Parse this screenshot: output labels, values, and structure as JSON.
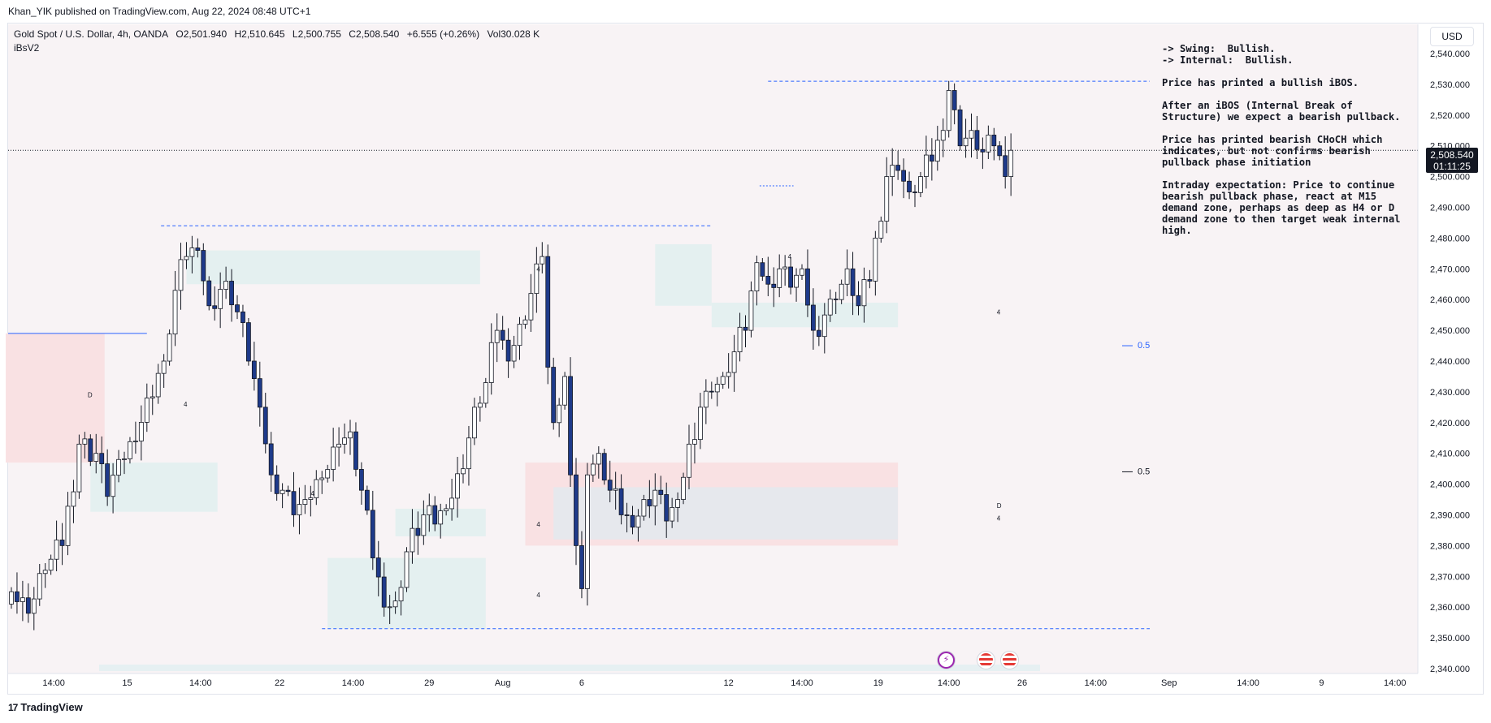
{
  "publisher_line": "Khan_YIK published on TradingView.com, Aug 22, 2024 08:48 UTC+1",
  "legend": {
    "symbol": "Gold Spot / U.S. Dollar, 4h, OANDA",
    "open": "O2,501.940",
    "high": "H2,510.645",
    "low": "L2,500.755",
    "close": "C2,508.540",
    "change": "+6.555 (+0.26%)",
    "volume": "Vol30.028 K",
    "indicator": "iBsV2"
  },
  "currency": "USD",
  "last_price": {
    "value": "2,508.540",
    "countdown": "01:11:25"
  },
  "notes": {
    "swing": "-> Swing:  Bullish.",
    "internal": "-> Internal:  Bullish.",
    "p1": "Price has printed a bullish iBOS.",
    "p2": "After an iBOS (Internal Break of Structure) we expect a bearish pullback.",
    "p3": "Price has printed bearish CHoCH which indicates, but not confirms bearish pullback phase initiation",
    "p4": "Intraday expectation: Price to continue bearish pullback phase, react at M15 demand zone, perhaps as deep as H4 or D demand zone to then target weak internal high."
  },
  "footer": {
    "brand": "TradingView"
  },
  "chart_data": {
    "type": "candlestick",
    "title": "Gold Spot / U.S. Dollar, 4h, OANDA",
    "ylim": [
      2333,
      2548
    ],
    "y_ticks": [
      2340,
      2350,
      2360,
      2370,
      2380,
      2390,
      2400,
      2410,
      2420,
      2430,
      2440,
      2450,
      2460,
      2470,
      2480,
      2490,
      2500,
      2510,
      2520,
      2530,
      2540
    ],
    "y_tick_labels": [
      "2,340.000",
      "2,350.000",
      "2,360.000",
      "2,370.000",
      "2,380.000",
      "2,390.000",
      "2,400.000",
      "2,410.000",
      "2,420.000",
      "2,430.000",
      "2,440.000",
      "2,450.000",
      "2,460.000",
      "2,470.000",
      "2,480.000",
      "2,490.000",
      "2,500.000",
      "2,510.000",
      "2,520.000",
      "2,530.000",
      "2,540.000"
    ],
    "x_labels": [
      {
        "label": "14:00",
        "bar": 7.5
      },
      {
        "label": "15",
        "bar": 20.5
      },
      {
        "label": "14:00",
        "bar": 33.5
      },
      {
        "label": "22",
        "bar": 47.5
      },
      {
        "label": "14:00",
        "bar": 60.5
      },
      {
        "label": "29",
        "bar": 74
      },
      {
        "label": "Aug",
        "bar": 87
      },
      {
        "label": "6",
        "bar": 101
      },
      {
        "label": "12",
        "bar": 127
      },
      {
        "label": "14:00",
        "bar": 140
      },
      {
        "label": "19",
        "bar": 153.5
      },
      {
        "label": "14:00",
        "bar": 166
      },
      {
        "label": "26",
        "bar": 179
      },
      {
        "label": "14:00",
        "bar": 192
      },
      {
        "label": "Sep",
        "bar": 205
      },
      {
        "label": "14:00",
        "bar": 219
      },
      {
        "label": "9",
        "bar": 232
      },
      {
        "label": "14:00",
        "bar": 245
      }
    ],
    "close_anchors": [
      [
        0,
        2365
      ],
      [
        3,
        2358
      ],
      [
        6,
        2372
      ],
      [
        9,
        2380
      ],
      [
        12,
        2413
      ],
      [
        15,
        2410
      ],
      [
        17,
        2396
      ],
      [
        19,
        2408
      ],
      [
        22,
        2414
      ],
      [
        24,
        2428
      ],
      [
        27,
        2440
      ],
      [
        29,
        2463
      ],
      [
        31,
        2474
      ],
      [
        33,
        2476
      ],
      [
        35,
        2458
      ],
      [
        38,
        2466
      ],
      [
        40,
        2456
      ],
      [
        42,
        2440
      ],
      [
        44,
        2425
      ],
      [
        46,
        2403
      ],
      [
        48,
        2398
      ],
      [
        50,
        2390
      ],
      [
        52,
        2395
      ],
      [
        55,
        2402
      ],
      [
        58,
        2413
      ],
      [
        60,
        2417
      ],
      [
        62,
        2398
      ],
      [
        64,
        2376
      ],
      [
        66,
        2360
      ],
      [
        68,
        2362
      ],
      [
        70,
        2378
      ],
      [
        73,
        2390
      ],
      [
        75,
        2387
      ],
      [
        77,
        2392
      ],
      [
        80,
        2405
      ],
      [
        82,
        2425
      ],
      [
        84,
        2433
      ],
      [
        86,
        2450
      ],
      [
        88,
        2440
      ],
      [
        90,
        2452
      ],
      [
        92,
        2462
      ],
      [
        94,
        2474
      ],
      [
        95,
        2438
      ],
      [
        96,
        2420
      ],
      [
        98,
        2435
      ],
      [
        100,
        2380
      ],
      [
        101,
        2366
      ],
      [
        102,
        2403
      ],
      [
        104,
        2410
      ],
      [
        106,
        2398
      ],
      [
        108,
        2390
      ],
      [
        110,
        2386
      ],
      [
        112,
        2395
      ],
      [
        114,
        2398
      ],
      [
        116,
        2388
      ],
      [
        118,
        2395
      ],
      [
        120,
        2413
      ],
      [
        122,
        2425
      ],
      [
        124,
        2430
      ],
      [
        126,
        2435
      ],
      [
        128,
        2443
      ],
      [
        130,
        2450
      ],
      [
        132,
        2472
      ],
      [
        134,
        2465
      ],
      [
        136,
        2470
      ],
      [
        138,
        2464
      ],
      [
        140,
        2470
      ],
      [
        142,
        2450
      ],
      [
        144,
        2455
      ],
      [
        146,
        2460
      ],
      [
        148,
        2470
      ],
      [
        150,
        2458
      ],
      [
        152,
        2466
      ],
      [
        153,
        2480
      ],
      [
        155,
        2500
      ],
      [
        157,
        2502
      ],
      [
        159,
        2495
      ],
      [
        161,
        2500
      ],
      [
        163,
        2505
      ],
      [
        165,
        2515
      ],
      [
        166,
        2528
      ],
      [
        168,
        2510
      ],
      [
        170,
        2515
      ],
      [
        172,
        2508
      ],
      [
        174,
        2510
      ],
      [
        176,
        2500
      ],
      [
        177,
        2508.54
      ]
    ],
    "annotations": [
      {
        "type": "label",
        "text": "D",
        "bar": 13.5,
        "price": 2429
      },
      {
        "type": "label",
        "text": "4",
        "bar": 30.5,
        "price": 2426
      },
      {
        "type": "label",
        "text": "4",
        "bar": 53,
        "price": 2397
      },
      {
        "type": "label",
        "text": "4",
        "bar": 93,
        "price": 2470
      },
      {
        "type": "label",
        "text": "4",
        "bar": 93,
        "price": 2387
      },
      {
        "type": "label",
        "text": "4",
        "bar": 93,
        "price": 2364
      },
      {
        "type": "label",
        "text": "4",
        "bar": 137.5,
        "price": 2474
      },
      {
        "type": "label",
        "text": "4",
        "bar": 174.5,
        "price": 2456
      },
      {
        "type": "label",
        "text": "D",
        "bar": 174.5,
        "price": 2393
      },
      {
        "type": "label",
        "text": "4",
        "bar": 174.5,
        "price": 2389
      },
      {
        "type": "label",
        "text": "0.5",
        "bar": 190.5,
        "price": 2445
      },
      {
        "type": "label",
        "text": "0.5",
        "bar": 190.5,
        "price": 2404
      }
    ]
  }
}
